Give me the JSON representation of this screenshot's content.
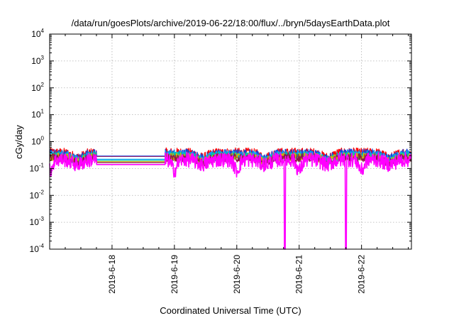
{
  "chart_data": {
    "type": "line",
    "title": "/data/run/goesPlots/archive/2019-06-22/18:00/flux/../bryn/5daysEarthData.plot",
    "xlabel": "Coordinated Universal Time (UTC)",
    "ylabel": "cGy/day",
    "y_scale": "log",
    "ylim_exponents": [
      -4,
      4
    ],
    "y_tick_base": "10",
    "y_tick_exponents": [
      "-4",
      "-3",
      "-2",
      "-1",
      "0",
      "1",
      "2",
      "3",
      "4"
    ],
    "x_tick_labels": [
      "2019-6-18",
      "2019-6-19",
      "2019-6-20",
      "2019-6-21",
      "2019-6-22"
    ],
    "xlim_days": [
      17.0,
      22.8
    ],
    "x_tick_days": [
      18,
      19,
      20,
      21,
      22
    ],
    "grid": true,
    "data_gap_days": [
      17.75,
      18.85
    ],
    "dropouts": [
      {
        "day": 20.77,
        "value": 0.0001
      },
      {
        "day": 21.75,
        "value": 0.0001
      }
    ],
    "series": [
      {
        "color": "#ff0000",
        "base_value": 0.22,
        "amplitude": 0.35,
        "level_in_gap": 0.28
      },
      {
        "color": "#1f3fd6",
        "base_value": 0.2,
        "amplitude": 0.35,
        "level_in_gap": 0.29
      },
      {
        "color": "#00a0ff",
        "base_value": 0.18,
        "amplitude": 0.34,
        "level_in_gap": 0.22
      },
      {
        "color": "#00c8a0",
        "base_value": 0.16,
        "amplitude": 0.33,
        "level_in_gap": 0.2
      },
      {
        "color": "#d4b000",
        "base_value": 0.15,
        "amplitude": 0.32,
        "level_in_gap": 0.18
      },
      {
        "color": "#8b1a4a",
        "base_value": 0.14,
        "amplitude": 0.32,
        "level_in_gap": 0.165
      },
      {
        "color": "#ff00ff",
        "base_value": 0.12,
        "amplitude": 0.55,
        "level_in_gap": 0.14
      }
    ]
  }
}
